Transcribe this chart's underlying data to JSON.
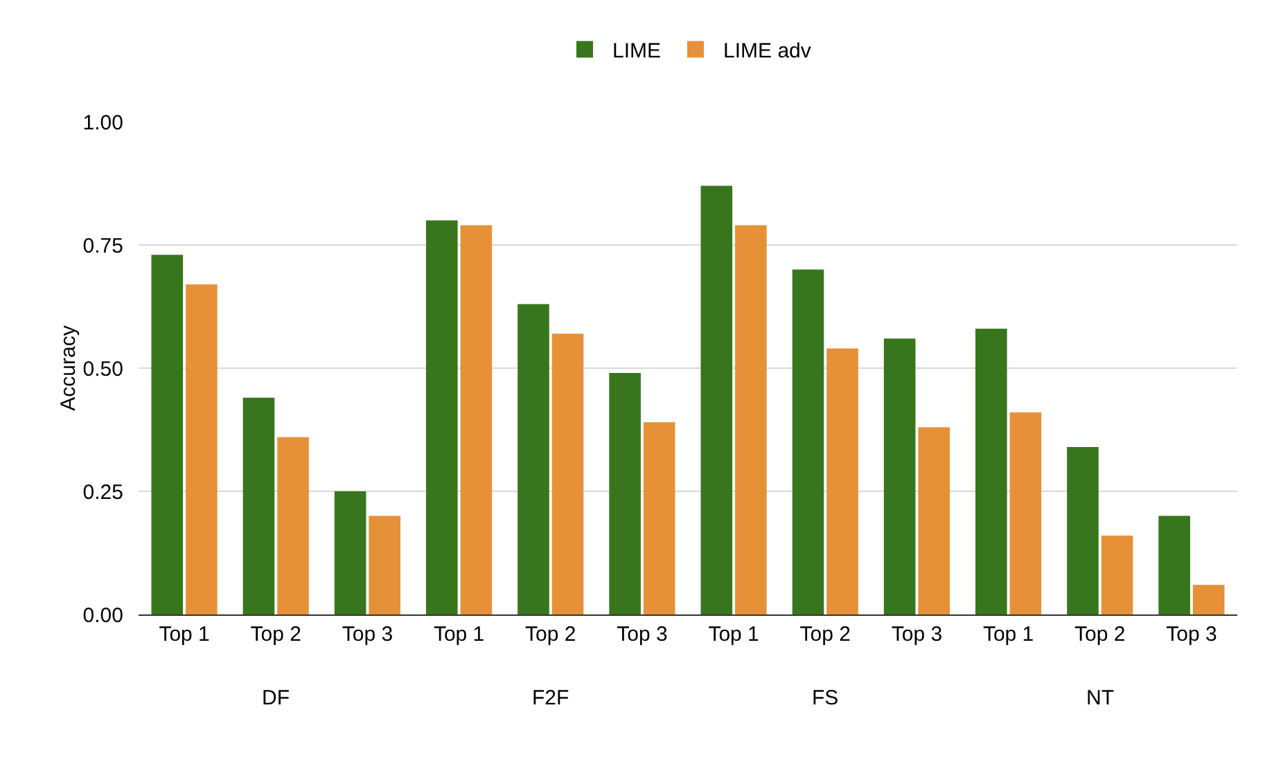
{
  "chart_data": {
    "type": "bar",
    "ylabel": "Accuracy",
    "categories": [
      "Top 1",
      "Top 2",
      "Top 3",
      "Top 1",
      "Top 2",
      "Top 3",
      "Top 1",
      "Top 2",
      "Top 3",
      "Top 1",
      "Top 2",
      "Top 3"
    ],
    "series": [
      {
        "name": "LIME",
        "color": "#38761d",
        "values": [
          0.73,
          0.44,
          0.25,
          0.8,
          0.63,
          0.49,
          0.87,
          0.7,
          0.56,
          0.58,
          0.34,
          0.2
        ]
      },
      {
        "name": "LIME adv",
        "color": "#e69138",
        "values": [
          0.67,
          0.36,
          0.2,
          0.79,
          0.57,
          0.39,
          0.79,
          0.54,
          0.38,
          0.41,
          0.16,
          0.06
        ]
      }
    ],
    "annotations": [
      "DF",
      "F2F",
      "FS",
      "NT"
    ],
    "ylim": [
      0,
      1
    ],
    "yticks": [
      {
        "value": 0,
        "label": "0.00"
      },
      {
        "value": 0.25,
        "label": "0.25"
      },
      {
        "value": 0.5,
        "label": "0.50"
      },
      {
        "value": 0.75,
        "label": "0.75"
      },
      {
        "value": 1,
        "label": "1.00"
      }
    ],
    "grid": "y",
    "legend": "top"
  }
}
